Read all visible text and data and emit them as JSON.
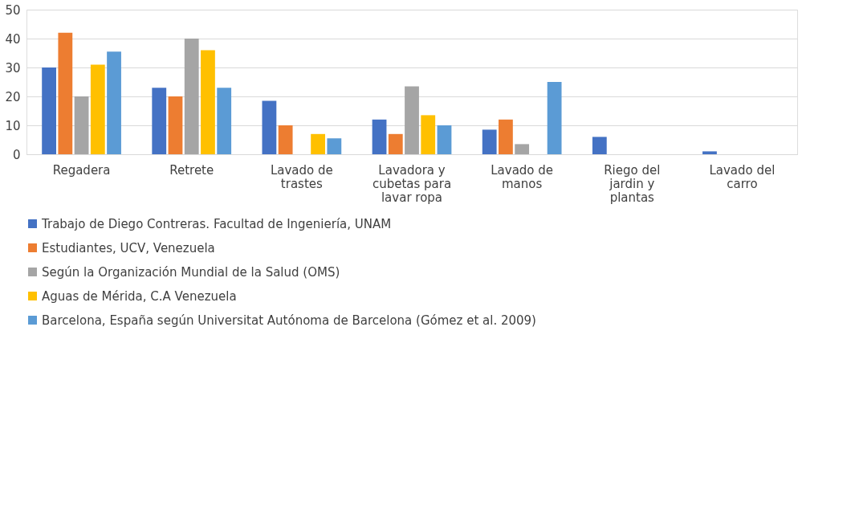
{
  "chart_data": {
    "type": "bar",
    "categories": [
      "Regadera",
      "Retrete",
      "Lavado de trastes",
      "Lavadora y cubetas para lavar ropa",
      "Lavado de manos",
      "Riego del jardin y plantas",
      "Lavado del carro"
    ],
    "series": [
      {
        "name": "Trabajo de Diego Contreras. Facultad de Ingeniería, UNAM",
        "color": "#4472c4",
        "values": [
          30,
          23,
          18.5,
          12,
          8.5,
          6,
          1
        ]
      },
      {
        "name": "Estudiantes, UCV, Venezuela",
        "color": "#ed7d31",
        "values": [
          42,
          20,
          10,
          7,
          12,
          null,
          null
        ]
      },
      {
        "name": "Según la Organización Mundial de la Salud (OMS)",
        "color": "#a5a5a5",
        "values": [
          20,
          40,
          null,
          23.5,
          3.5,
          null,
          null
        ]
      },
      {
        "name": "Aguas de Mérida, C.A Venezuela",
        "color": "#ffc000",
        "values": [
          31,
          36,
          7,
          13.5,
          null,
          null,
          null
        ]
      },
      {
        "name": "Barcelona, España según Universitat Autónoma de Barcelona (Gómez et al. 2009)",
        "color": "#5b9bd5",
        "values": [
          35.5,
          23,
          5.5,
          10,
          25,
          null,
          null
        ]
      }
    ],
    "ylim": [
      0,
      50
    ],
    "yticks": [
      0,
      10,
      20,
      30,
      40,
      50
    ],
    "grid": "y",
    "legend": "bottom"
  }
}
